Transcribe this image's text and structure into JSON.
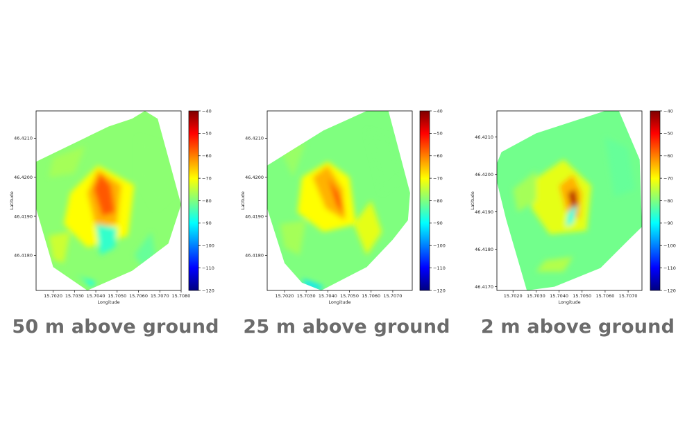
{
  "colormap": {
    "name": "jet",
    "stops": [
      "#00007f",
      "#0000ff",
      "#007fff",
      "#00ffff",
      "#7fff7f",
      "#ffff00",
      "#ff7f00",
      "#ff0000",
      "#7f0000"
    ]
  },
  "panels": [
    {
      "caption": "50 m above ground",
      "chart_data": {
        "type": "heatmap",
        "xlabel": "Longitude",
        "ylabel": "Latitude",
        "xlim": [
          15.7012,
          15.708
        ],
        "ylim": [
          46.4171,
          46.4217
        ],
        "xticks": [
          "15.7020",
          "15.7030",
          "15.7040",
          "15.7050",
          "15.7060",
          "15.7070",
          "15.7080"
        ],
        "xtick_values": [
          15.702,
          15.703,
          15.704,
          15.705,
          15.706,
          15.707,
          15.708
        ],
        "yticks": [
          "46.4180",
          "46.4190",
          "46.4200",
          "46.4210"
        ],
        "ytick_values": [
          46.418,
          46.419,
          46.42,
          46.421
        ],
        "colorbar_range": [
          -120,
          -40
        ],
        "colorbar_ticks": [
          "−40",
          "−50",
          "−60",
          "−70",
          "−80",
          "−90",
          "−100",
          "−110",
          "−120"
        ],
        "colorbar_tick_values": [
          -40,
          -50,
          -60,
          -70,
          -80,
          -90,
          -100,
          -110,
          -120
        ],
        "base_value": -79,
        "coverage_polygon": [
          [
            15.7012,
            46.4204
          ],
          [
            15.7046,
            46.4213
          ],
          [
            15.7057,
            46.4215
          ],
          [
            15.7063,
            46.4217
          ],
          [
            15.7069,
            46.4215
          ],
          [
            15.708,
            46.4193
          ],
          [
            15.7074,
            46.4183
          ],
          [
            15.7057,
            46.4176
          ],
          [
            15.7036,
            46.4171
          ],
          [
            15.702,
            46.4177
          ],
          [
            15.7012,
            46.4192
          ]
        ],
        "regions": [
          {
            "polygon": [
              [
                15.7028,
                46.4196
              ],
              [
                15.7041,
                46.4203
              ],
              [
                15.7058,
                46.4198
              ],
              [
                15.7055,
                46.4185
              ],
              [
                15.7036,
                46.4182
              ],
              [
                15.7025,
                46.4188
              ]
            ],
            "value": -70
          },
          {
            "polygon": [
              [
                15.7036,
                46.4196
              ],
              [
                15.7041,
                46.4202
              ],
              [
                15.7052,
                46.4198
              ],
              [
                15.705,
                46.4188
              ],
              [
                15.704,
                46.4187
              ]
            ],
            "value": -64
          },
          {
            "polygon": [
              [
                15.7039,
                46.4197
              ],
              [
                15.7042,
                46.4201
              ],
              [
                15.7047,
                46.4198
              ],
              [
                15.7049,
                46.4191
              ],
              [
                15.7043,
                46.419
              ]
            ],
            "value": -57
          },
          {
            "polygon": [
              [
                15.704,
                46.4188
              ],
              [
                15.705,
                46.4187
              ],
              [
                15.7049,
                46.4182
              ],
              [
                15.7042,
                46.418
              ]
            ],
            "value": -86
          },
          {
            "polygon": [
              [
                15.703,
                46.4175
              ],
              [
                15.704,
                46.4173
              ],
              [
                15.7038,
                46.4172
              ],
              [
                15.7034,
                46.4174
              ]
            ],
            "value": -90
          },
          {
            "polygon": [
              [
                15.702,
                46.4205
              ],
              [
                15.7035,
                46.4208
              ],
              [
                15.703,
                46.4201
              ],
              [
                15.7018,
                46.42
              ]
            ],
            "value": -77
          },
          {
            "polygon": [
              [
                15.706,
                46.421
              ],
              [
                15.7072,
                46.4208
              ],
              [
                15.7076,
                46.4196
              ],
              [
                15.7068,
                46.4192
              ],
              [
                15.706,
                46.42
              ]
            ],
            "value": -79
          },
          {
            "polygon": [
              [
                15.7058,
                46.418
              ],
              [
                15.7066,
                46.4186
              ],
              [
                15.7068,
                46.418
              ],
              [
                15.7062,
                46.4177
              ]
            ],
            "value": -82
          },
          {
            "polygon": [
              [
                15.7018,
                46.4185
              ],
              [
                15.7028,
                46.4186
              ],
              [
                15.7025,
                46.4178
              ],
              [
                15.702,
                46.4179
              ]
            ],
            "value": -74
          }
        ]
      }
    },
    {
      "caption": "25 m above ground",
      "chart_data": {
        "type": "heatmap",
        "xlabel": "Longitude",
        "ylabel": "Latitude",
        "xlim": [
          15.7012,
          15.7079
        ],
        "ylim": [
          46.4171,
          46.4217
        ],
        "xticks": [
          "15.7020",
          "15.7030",
          "15.7040",
          "15.7050",
          "15.7060",
          "15.7070"
        ],
        "xtick_values": [
          15.702,
          15.703,
          15.704,
          15.705,
          15.706,
          15.707
        ],
        "yticks": [
          "46.4180",
          "46.4190",
          "46.4200",
          "46.4210"
        ],
        "ytick_values": [
          46.418,
          46.419,
          46.42,
          46.421
        ],
        "colorbar_range": [
          -120,
          -40
        ],
        "colorbar_ticks": [
          "−40",
          "−50",
          "−60",
          "−70",
          "−80",
          "−90",
          "−100",
          "−110",
          "−120"
        ],
        "colorbar_tick_values": [
          -40,
          -50,
          -60,
          -70,
          -80,
          -90,
          -100,
          -110,
          -120
        ],
        "base_value": -80,
        "coverage_polygon": [
          [
            15.7012,
            46.4203
          ],
          [
            15.7038,
            46.4212
          ],
          [
            15.7058,
            46.4217
          ],
          [
            15.7068,
            46.4217
          ],
          [
            15.7078,
            46.4196
          ],
          [
            15.7077,
            46.4189
          ],
          [
            15.707,
            46.4184
          ],
          [
            15.7058,
            46.4177
          ],
          [
            15.7037,
            46.4171
          ],
          [
            15.7028,
            46.4173
          ],
          [
            15.702,
            46.4178
          ],
          [
            15.7012,
            46.4192
          ]
        ],
        "regions": [
          {
            "polygon": [
              [
                15.7028,
                46.42
              ],
              [
                15.704,
                46.4204
              ],
              [
                15.705,
                46.42
              ],
              [
                15.7053,
                46.4188
              ],
              [
                15.7038,
                46.4186
              ],
              [
                15.7026,
                46.4191
              ]
            ],
            "value": -70
          },
          {
            "polygon": [
              [
                15.7033,
                46.42
              ],
              [
                15.704,
                46.4203
              ],
              [
                15.7047,
                46.4197
              ],
              [
                15.7048,
                46.4189
              ],
              [
                15.7039,
                46.4192
              ]
            ],
            "value": -64
          },
          {
            "polygon": [
              [
                15.704,
                46.42
              ],
              [
                15.7045,
                46.4196
              ],
              [
                15.7048,
                46.419
              ],
              [
                15.7044,
                46.4193
              ]
            ],
            "value": -56
          },
          {
            "polygon": [
              [
                15.7052,
                46.4188
              ],
              [
                15.706,
                46.4194
              ],
              [
                15.7065,
                46.4186
              ],
              [
                15.7058,
                46.418
              ]
            ],
            "value": -72
          },
          {
            "polygon": [
              [
                15.7028,
                46.4174
              ],
              [
                15.7038,
                46.4172
              ],
              [
                15.7036,
                46.4171
              ],
              [
                15.703,
                46.4172
              ]
            ],
            "value": -92
          },
          {
            "polygon": [
              [
                15.7018,
                46.4207
              ],
              [
                15.703,
                46.4209
              ],
              [
                15.7024,
                46.42
              ]
            ],
            "value": -78
          },
          {
            "polygon": [
              [
                15.7058,
                46.4212
              ],
              [
                15.707,
                46.421
              ],
              [
                15.7074,
                46.42
              ],
              [
                15.7065,
                46.4196
              ]
            ],
            "value": -80
          },
          {
            "polygon": [
              [
                15.7018,
                46.4188
              ],
              [
                15.703,
                46.4189
              ],
              [
                15.7027,
                46.418
              ],
              [
                15.702,
                46.4182
              ]
            ],
            "value": -77
          }
        ]
      }
    },
    {
      "caption": "2 m above ground",
      "chart_data": {
        "type": "heatmap",
        "xlabel": "Longitude",
        "ylabel": "Latitude",
        "xlim": [
          15.7013,
          15.7076
        ],
        "ylim": [
          46.4169,
          46.4217
        ],
        "xticks": [
          "15.7020",
          "15.7030",
          "15.7040",
          "15.7050",
          "15.7060",
          "15.7070"
        ],
        "xtick_values": [
          15.702,
          15.703,
          15.704,
          15.705,
          15.706,
          15.707
        ],
        "yticks": [
          "46.4170",
          "46.4180",
          "46.4190",
          "46.4200",
          "46.4210"
        ],
        "ytick_values": [
          46.417,
          46.418,
          46.419,
          46.42,
          46.421
        ],
        "colorbar_range": [
          -120,
          -40
        ],
        "colorbar_ticks": [
          "−40",
          "−50",
          "−60",
          "−70",
          "−80",
          "−90",
          "−100",
          "−110",
          "−120"
        ],
        "colorbar_tick_values": [
          -40,
          -50,
          -60,
          -70,
          -80,
          -90,
          -100,
          -110,
          -120
        ],
        "base_value": -81,
        "coverage_polygon": [
          [
            15.7013,
            46.4203
          ],
          [
            15.7015,
            46.4206
          ],
          [
            15.703,
            46.4211
          ],
          [
            15.706,
            46.4217
          ],
          [
            15.7066,
            46.4217
          ],
          [
            15.7075,
            46.4204
          ],
          [
            15.7076,
            46.4186
          ],
          [
            15.7071,
            46.4183
          ],
          [
            15.7058,
            46.4175
          ],
          [
            15.7038,
            46.417
          ],
          [
            15.7026,
            46.4169
          ],
          [
            15.7017,
            46.4188
          ],
          [
            15.7013,
            46.4198
          ]
        ],
        "regions": [
          {
            "polygon": [
              [
                15.703,
                46.4199
              ],
              [
                15.7042,
                46.4204
              ],
              [
                15.7054,
                46.4197
              ],
              [
                15.7052,
                46.4185
              ],
              [
                15.7036,
                46.4184
              ],
              [
                15.7028,
                46.4191
              ]
            ],
            "value": -72
          },
          {
            "polygon": [
              [
                15.704,
                46.4197
              ],
              [
                15.7046,
                46.42
              ],
              [
                15.705,
                46.4195
              ],
              [
                15.7049,
                46.4188
              ],
              [
                15.7043,
                46.419
              ]
            ],
            "value": -64
          },
          {
            "polygon": [
              [
                15.7044,
                46.4195
              ],
              [
                15.7047,
                46.4196
              ],
              [
                15.7048,
                46.4192
              ],
              [
                15.7046,
                46.419
              ]
            ],
            "value": -44
          },
          {
            "polygon": [
              [
                15.7044,
                46.419
              ],
              [
                15.7048,
                46.4192
              ],
              [
                15.7046,
                46.4187
              ],
              [
                15.7043,
                46.4186
              ]
            ],
            "value": -88
          },
          {
            "polygon": [
              [
                15.703,
                46.4174
              ],
              [
                15.7042,
                46.4174
              ],
              [
                15.7046,
                46.4178
              ],
              [
                15.7034,
                46.4177
              ]
            ],
            "value": -76
          },
          {
            "polygon": [
              [
                15.706,
                46.421
              ],
              [
                15.707,
                46.4207
              ],
              [
                15.7073,
                46.4196
              ],
              [
                15.7064,
                46.4194
              ]
            ],
            "value": -82
          },
          {
            "polygon": [
              [
                15.702,
                46.4196
              ],
              [
                15.703,
                46.4201
              ],
              [
                15.703,
                46.4193
              ],
              [
                15.7022,
                46.419
              ]
            ],
            "value": -77
          }
        ]
      }
    }
  ]
}
